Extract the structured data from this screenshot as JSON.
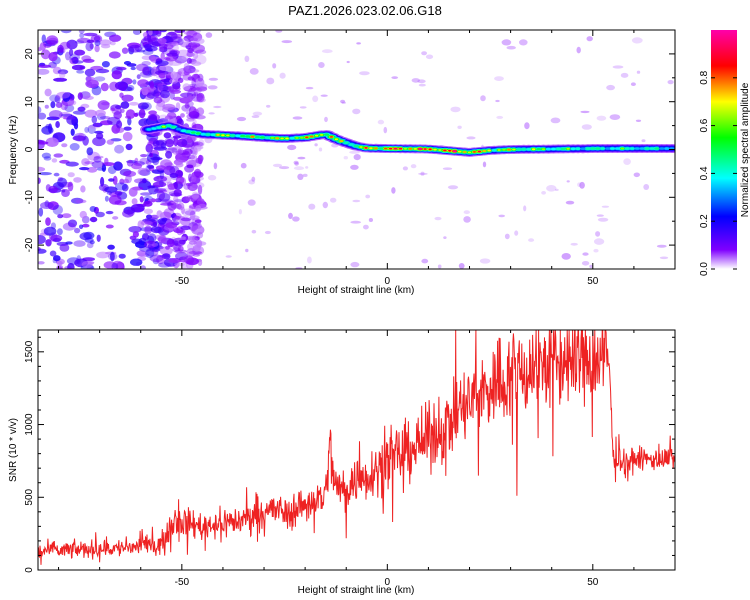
{
  "title": "PAZ1.2026.023.02.06.G18",
  "chart_data": [
    {
      "type": "heatmap",
      "xlabel": "Height of straight line (km)",
      "ylabel": "Frequency (Hz)",
      "xlim": [
        -85,
        70
      ],
      "ylim": [
        -25,
        25
      ],
      "xticks": [
        -50,
        0,
        50
      ],
      "yticks": [
        -20,
        -10,
        0,
        10,
        20
      ],
      "colorbar": {
        "label": "Normalized spectral amplitude",
        "range": [
          0,
          1
        ],
        "ticks": [
          "0.0",
          "0.2",
          "0.4",
          "0.6",
          "0.8"
        ],
        "colors": [
          "#ffffff",
          "#8000ff",
          "#0000ff",
          "#00ffff",
          "#00ff00",
          "#ffff00",
          "#ff0000",
          "#ff00aa"
        ]
      },
      "ridge": {
        "height": [
          -58,
          -53,
          -50,
          -45,
          -40,
          -35,
          -30,
          -25,
          -20,
          -15,
          -12,
          -8,
          -5,
          0,
          10,
          20,
          25,
          30,
          40,
          50,
          60,
          70
        ],
        "frequency": [
          4.2,
          5.0,
          4.0,
          3.2,
          3.0,
          2.8,
          2.5,
          2.3,
          2.5,
          3.2,
          2.0,
          0.8,
          0.3,
          0.2,
          0.1,
          -0.6,
          -0.2,
          0.0,
          0.1,
          0.2,
          0.2,
          0.2
        ],
        "amplitude": [
          0.55,
          0.6,
          0.55,
          0.6,
          0.7,
          0.65,
          0.72,
          0.7,
          0.75,
          0.85,
          0.7,
          0.65,
          0.8,
          0.9,
          0.92,
          0.9,
          0.75,
          0.7,
          0.6,
          0.55,
          0.55,
          0.5
        ]
      }
    },
    {
      "type": "line",
      "xlabel": "Height of straight line (km)",
      "ylabel": "SNR (10 * v/v)",
      "xlim": [
        -85,
        70
      ],
      "ylim": [
        0,
        1650
      ],
      "xticks": [
        -50,
        0,
        50
      ],
      "yticks": [
        0,
        500,
        1000,
        1500
      ],
      "series": [
        {
          "name": "SNR",
          "color": "#ee2222",
          "x": [
            -85,
            -75,
            -65,
            -55,
            -52,
            -45,
            -40,
            -35,
            -30,
            -25,
            -20,
            -15,
            -14,
            -13,
            -12,
            -5,
            0,
            10,
            20,
            30,
            40,
            50,
            54,
            55,
            60,
            70
          ],
          "y": [
            130,
            140,
            150,
            180,
            350,
            300,
            330,
            340,
            420,
            400,
            450,
            520,
            850,
            630,
            550,
            650,
            750,
            900,
            1150,
            1350,
            1430,
            1450,
            1420,
            760,
            760,
            760
          ]
        }
      ]
    }
  ]
}
